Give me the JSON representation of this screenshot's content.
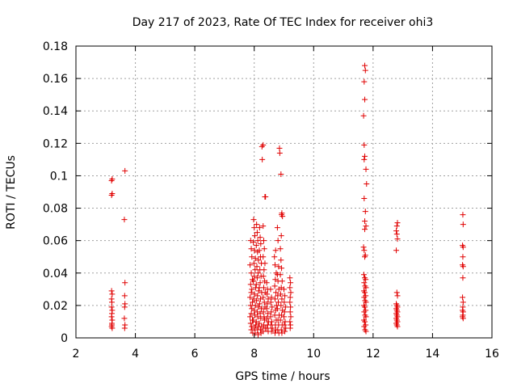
{
  "chart_data": {
    "type": "scatter",
    "title": "Day 217 of 2023, Rate Of TEC Index for receiver ohi3",
    "xlabel": "GPS time / hours",
    "ylabel": "ROTI / TECUs",
    "xlim": [
      2,
      16
    ],
    "ylim": [
      0,
      0.18
    ],
    "x_ticks": [
      2,
      4,
      6,
      8,
      10,
      12,
      14,
      16
    ],
    "x_tick_labels": [
      "2",
      "4",
      "6",
      "8",
      "10",
      "12",
      "14",
      "16"
    ],
    "y_ticks": [
      0,
      0.02,
      0.04,
      0.06,
      0.08,
      0.1,
      0.12,
      0.14,
      0.16,
      0.18
    ],
    "y_tick_labels": [
      "0",
      "0.02",
      "0.04",
      "0.06",
      "0.08",
      "0.1",
      "0.12",
      "0.14",
      "0.16",
      "0.18"
    ],
    "grid": true,
    "marker": "+",
    "color": "#e00000",
    "series": [
      {
        "points": [
          [
            3.2,
            0.097
          ],
          [
            3.22,
            0.098
          ],
          [
            3.2,
            0.088
          ],
          [
            3.22,
            0.089
          ],
          [
            3.2,
            0.029
          ],
          [
            3.22,
            0.027
          ],
          [
            3.21,
            0.022
          ],
          [
            3.2,
            0.019
          ],
          [
            3.22,
            0.017
          ],
          [
            3.21,
            0.015
          ],
          [
            3.2,
            0.013
          ],
          [
            3.22,
            0.011
          ],
          [
            3.21,
            0.009
          ],
          [
            3.2,
            0.007
          ],
          [
            3.22,
            0.006
          ],
          [
            3.21,
            0.008
          ],
          [
            3.2,
            0.024
          ],
          [
            3.65,
            0.103
          ],
          [
            3.63,
            0.073
          ],
          [
            3.65,
            0.034
          ],
          [
            3.64,
            0.026
          ],
          [
            3.65,
            0.021
          ],
          [
            3.64,
            0.019
          ],
          [
            3.63,
            0.012
          ],
          [
            3.65,
            0.008
          ],
          [
            3.64,
            0.006
          ],
          [
            7.88,
            0.06
          ],
          [
            7.9,
            0.055
          ],
          [
            7.92,
            0.05
          ],
          [
            7.86,
            0.045
          ],
          [
            7.9,
            0.04
          ],
          [
            7.94,
            0.036
          ],
          [
            7.88,
            0.033
          ],
          [
            7.92,
            0.03
          ],
          [
            7.9,
            0.028
          ],
          [
            7.86,
            0.025
          ],
          [
            7.94,
            0.022
          ],
          [
            7.88,
            0.02
          ],
          [
            7.92,
            0.018
          ],
          [
            7.9,
            0.015
          ],
          [
            7.86,
            0.013
          ],
          [
            7.94,
            0.011
          ],
          [
            7.88,
            0.009
          ],
          [
            7.92,
            0.007
          ],
          [
            7.9,
            0.005
          ],
          [
            7.95,
            0.003
          ],
          [
            7.98,
            0.073
          ],
          [
            8.0,
            0.068
          ],
          [
            8.02,
            0.063
          ],
          [
            7.97,
            0.059
          ],
          [
            8.01,
            0.054
          ],
          [
            8.04,
            0.049
          ],
          [
            7.99,
            0.046
          ],
          [
            8.03,
            0.042
          ],
          [
            8.0,
            0.038
          ],
          [
            7.97,
            0.035
          ],
          [
            8.05,
            0.031
          ],
          [
            8.01,
            0.027
          ],
          [
            7.98,
            0.024
          ],
          [
            8.04,
            0.02
          ],
          [
            8.0,
            0.017
          ],
          [
            8.02,
            0.014
          ],
          [
            7.97,
            0.011
          ],
          [
            8.05,
            0.008
          ],
          [
            8.01,
            0.006
          ],
          [
            8.03,
            0.003
          ],
          [
            8.08,
            0.07
          ],
          [
            8.1,
            0.065
          ],
          [
            8.12,
            0.06
          ],
          [
            8.07,
            0.057
          ],
          [
            8.11,
            0.053
          ],
          [
            8.14,
            0.048
          ],
          [
            8.09,
            0.044
          ],
          [
            8.13,
            0.04
          ],
          [
            8.1,
            0.037
          ],
          [
            8.07,
            0.033
          ],
          [
            8.15,
            0.029
          ],
          [
            8.11,
            0.026
          ],
          [
            8.08,
            0.023
          ],
          [
            8.14,
            0.019
          ],
          [
            8.1,
            0.016
          ],
          [
            8.12,
            0.013
          ],
          [
            8.07,
            0.01
          ],
          [
            8.15,
            0.007
          ],
          [
            8.11,
            0.005
          ],
          [
            8.13,
            0.002
          ],
          [
            8.18,
            0.068
          ],
          [
            8.2,
            0.062
          ],
          [
            8.22,
            0.058
          ],
          [
            8.17,
            0.054
          ],
          [
            8.21,
            0.05
          ],
          [
            8.24,
            0.046
          ],
          [
            8.19,
            0.042
          ],
          [
            8.23,
            0.038
          ],
          [
            8.2,
            0.034
          ],
          [
            8.17,
            0.031
          ],
          [
            8.25,
            0.028
          ],
          [
            8.21,
            0.024
          ],
          [
            8.18,
            0.021
          ],
          [
            8.24,
            0.018
          ],
          [
            8.2,
            0.015
          ],
          [
            8.22,
            0.012
          ],
          [
            8.17,
            0.009
          ],
          [
            8.25,
            0.007
          ],
          [
            8.21,
            0.005
          ],
          [
            8.23,
            0.003
          ],
          [
            8.26,
            0.118
          ],
          [
            8.3,
            0.119
          ],
          [
            8.27,
            0.11
          ],
          [
            8.38,
            0.087
          ],
          [
            8.36,
            0.087
          ],
          [
            8.3,
            0.069
          ],
          [
            8.32,
            0.06
          ],
          [
            8.34,
            0.055
          ],
          [
            8.3,
            0.05
          ],
          [
            8.36,
            0.046
          ],
          [
            8.33,
            0.042
          ],
          [
            8.31,
            0.038
          ],
          [
            8.35,
            0.035
          ],
          [
            8.32,
            0.031
          ],
          [
            8.37,
            0.028
          ],
          [
            8.3,
            0.025
          ],
          [
            8.34,
            0.022
          ],
          [
            8.36,
            0.019
          ],
          [
            8.31,
            0.016
          ],
          [
            8.33,
            0.013
          ],
          [
            8.35,
            0.011
          ],
          [
            8.32,
            0.008
          ],
          [
            8.37,
            0.006
          ],
          [
            8.3,
            0.004
          ],
          [
            8.42,
            0.034
          ],
          [
            8.45,
            0.03
          ],
          [
            8.43,
            0.027
          ],
          [
            8.47,
            0.024
          ],
          [
            8.44,
            0.021
          ],
          [
            8.42,
            0.018
          ],
          [
            8.46,
            0.015
          ],
          [
            8.43,
            0.012
          ],
          [
            8.48,
            0.01
          ],
          [
            8.45,
            0.008
          ],
          [
            8.42,
            0.006
          ],
          [
            8.47,
            0.004
          ],
          [
            8.55,
            0.03
          ],
          [
            8.58,
            0.025
          ],
          [
            8.56,
            0.022
          ],
          [
            8.6,
            0.019
          ],
          [
            8.57,
            0.016
          ],
          [
            8.55,
            0.013
          ],
          [
            8.59,
            0.01
          ],
          [
            8.56,
            0.008
          ],
          [
            8.61,
            0.006
          ],
          [
            8.58,
            0.004
          ],
          [
            8.68,
            0.05
          ],
          [
            8.72,
            0.054
          ],
          [
            8.7,
            0.045
          ],
          [
            8.74,
            0.04
          ],
          [
            8.71,
            0.036
          ],
          [
            8.69,
            0.032
          ],
          [
            8.73,
            0.028
          ],
          [
            8.7,
            0.024
          ],
          [
            8.75,
            0.02
          ],
          [
            8.72,
            0.017
          ],
          [
            8.69,
            0.014
          ],
          [
            8.74,
            0.011
          ],
          [
            8.71,
            0.008
          ],
          [
            8.73,
            0.005
          ],
          [
            8.7,
            0.003
          ],
          [
            8.78,
            0.068
          ],
          [
            8.8,
            0.06
          ],
          [
            8.82,
            0.044
          ],
          [
            8.78,
            0.039
          ],
          [
            8.8,
            0.035
          ],
          [
            8.83,
            0.03
          ],
          [
            8.79,
            0.026
          ],
          [
            8.81,
            0.022
          ],
          [
            8.78,
            0.018
          ],
          [
            8.84,
            0.014
          ],
          [
            8.8,
            0.011
          ],
          [
            8.82,
            0.008
          ],
          [
            8.79,
            0.005
          ],
          [
            8.83,
            0.003
          ],
          [
            8.85,
            0.117
          ],
          [
            8.86,
            0.114
          ],
          [
            8.9,
            0.101
          ],
          [
            8.93,
            0.077
          ],
          [
            8.95,
            0.075
          ],
          [
            8.92,
            0.076
          ],
          [
            8.91,
            0.063
          ],
          [
            8.88,
            0.055
          ],
          [
            8.9,
            0.048
          ],
          [
            8.92,
            0.043
          ],
          [
            8.88,
            0.039
          ],
          [
            8.94,
            0.035
          ],
          [
            8.91,
            0.031
          ],
          [
            8.89,
            0.027
          ],
          [
            8.93,
            0.024
          ],
          [
            8.9,
            0.02
          ],
          [
            8.95,
            0.017
          ],
          [
            8.92,
            0.014
          ],
          [
            8.88,
            0.011
          ],
          [
            8.94,
            0.008
          ],
          [
            8.91,
            0.005
          ],
          [
            8.93,
            0.003
          ],
          [
            9.0,
            0.03
          ],
          [
            9.03,
            0.026
          ],
          [
            9.01,
            0.022
          ],
          [
            9.05,
            0.019
          ],
          [
            9.02,
            0.016
          ],
          [
            9.0,
            0.013
          ],
          [
            9.04,
            0.01
          ],
          [
            9.01,
            0.008
          ],
          [
            9.06,
            0.006
          ],
          [
            9.03,
            0.004
          ],
          [
            9.2,
            0.037
          ],
          [
            9.22,
            0.034
          ],
          [
            9.2,
            0.031
          ],
          [
            9.23,
            0.028
          ],
          [
            9.21,
            0.025
          ],
          [
            9.2,
            0.022
          ],
          [
            9.22,
            0.019
          ],
          [
            9.21,
            0.016
          ],
          [
            9.23,
            0.013
          ],
          [
            9.2,
            0.01
          ],
          [
            9.22,
            0.008
          ],
          [
            9.21,
            0.006
          ],
          [
            11.72,
            0.168
          ],
          [
            11.74,
            0.165
          ],
          [
            11.7,
            0.158
          ],
          [
            11.72,
            0.147
          ],
          [
            11.68,
            0.137
          ],
          [
            11.7,
            0.119
          ],
          [
            11.72,
            0.112
          ],
          [
            11.7,
            0.11
          ],
          [
            11.76,
            0.104
          ],
          [
            11.78,
            0.095
          ],
          [
            11.7,
            0.086
          ],
          [
            11.74,
            0.078
          ],
          [
            11.72,
            0.072
          ],
          [
            11.76,
            0.069
          ],
          [
            11.72,
            0.067
          ],
          [
            11.68,
            0.056
          ],
          [
            11.7,
            0.054
          ],
          [
            11.74,
            0.051
          ],
          [
            11.72,
            0.05
          ],
          [
            11.69,
            0.039
          ],
          [
            11.72,
            0.037
          ],
          [
            11.75,
            0.036
          ],
          [
            11.7,
            0.034
          ],
          [
            11.73,
            0.032
          ],
          [
            11.76,
            0.031
          ],
          [
            11.69,
            0.029
          ],
          [
            11.72,
            0.028
          ],
          [
            11.75,
            0.026
          ],
          [
            11.7,
            0.025
          ],
          [
            11.73,
            0.023
          ],
          [
            11.76,
            0.022
          ],
          [
            11.69,
            0.02
          ],
          [
            11.72,
            0.019
          ],
          [
            11.75,
            0.017
          ],
          [
            11.7,
            0.016
          ],
          [
            11.73,
            0.014
          ],
          [
            11.76,
            0.013
          ],
          [
            11.69,
            0.011
          ],
          [
            11.72,
            0.01
          ],
          [
            11.75,
            0.008
          ],
          [
            11.7,
            0.007
          ],
          [
            11.73,
            0.005
          ],
          [
            11.76,
            0.004
          ],
          [
            12.82,
            0.071
          ],
          [
            12.8,
            0.069
          ],
          [
            12.78,
            0.066
          ],
          [
            12.8,
            0.064
          ],
          [
            12.82,
            0.061
          ],
          [
            12.78,
            0.054
          ],
          [
            12.8,
            0.028
          ],
          [
            12.82,
            0.026
          ],
          [
            12.78,
            0.021
          ],
          [
            12.8,
            0.02
          ],
          [
            12.82,
            0.019
          ],
          [
            12.78,
            0.018
          ],
          [
            12.8,
            0.017
          ],
          [
            12.82,
            0.016
          ],
          [
            12.78,
            0.015
          ],
          [
            12.8,
            0.014
          ],
          [
            12.82,
            0.013
          ],
          [
            12.78,
            0.012
          ],
          [
            12.8,
            0.011
          ],
          [
            12.82,
            0.01
          ],
          [
            12.78,
            0.009
          ],
          [
            12.8,
            0.008
          ],
          [
            12.82,
            0.007
          ],
          [
            15.02,
            0.076
          ],
          [
            15.03,
            0.07
          ],
          [
            15.01,
            0.057
          ],
          [
            15.03,
            0.056
          ],
          [
            15.02,
            0.05
          ],
          [
            15.01,
            0.045
          ],
          [
            15.03,
            0.044
          ],
          [
            15.02,
            0.037
          ],
          [
            15.01,
            0.025
          ],
          [
            15.03,
            0.022
          ],
          [
            15.02,
            0.019
          ],
          [
            15.01,
            0.017
          ],
          [
            15.03,
            0.016
          ],
          [
            15.02,
            0.014
          ],
          [
            15.01,
            0.013
          ],
          [
            15.03,
            0.012
          ]
        ]
      }
    ]
  }
}
